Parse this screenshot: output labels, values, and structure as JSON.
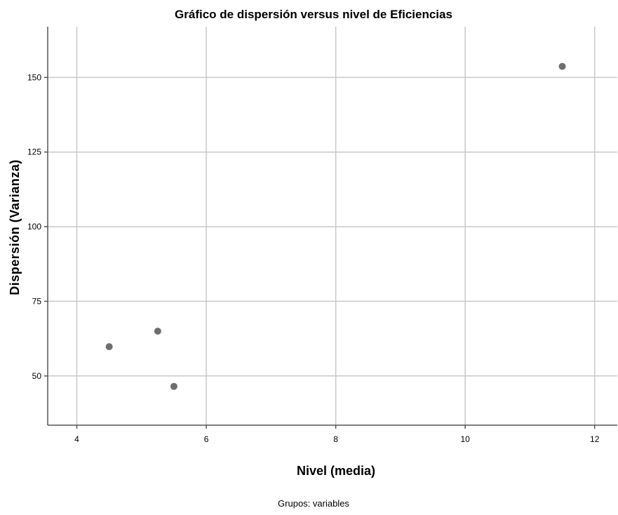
{
  "chart_data": {
    "type": "scatter",
    "title": "Gráfico de dispersión versus nivel de Eficiencias",
    "xlabel": "Nivel (media)",
    "ylabel": "Dispersión (Varianza)",
    "footnote": "Grupos: variables",
    "xlim": [
      3.55,
      12.35
    ],
    "ylim": [
      33.5,
      167
    ],
    "x_ticks": [
      4,
      6,
      8,
      10,
      12
    ],
    "y_ticks": [
      50,
      75,
      100,
      125,
      150
    ],
    "grid": true,
    "point_color": "#6e6e6e",
    "points": [
      {
        "x": 4.5,
        "y": 59.8
      },
      {
        "x": 5.25,
        "y": 65.0
      },
      {
        "x": 5.5,
        "y": 46.5
      },
      {
        "x": 11.5,
        "y": 153.7
      }
    ]
  }
}
